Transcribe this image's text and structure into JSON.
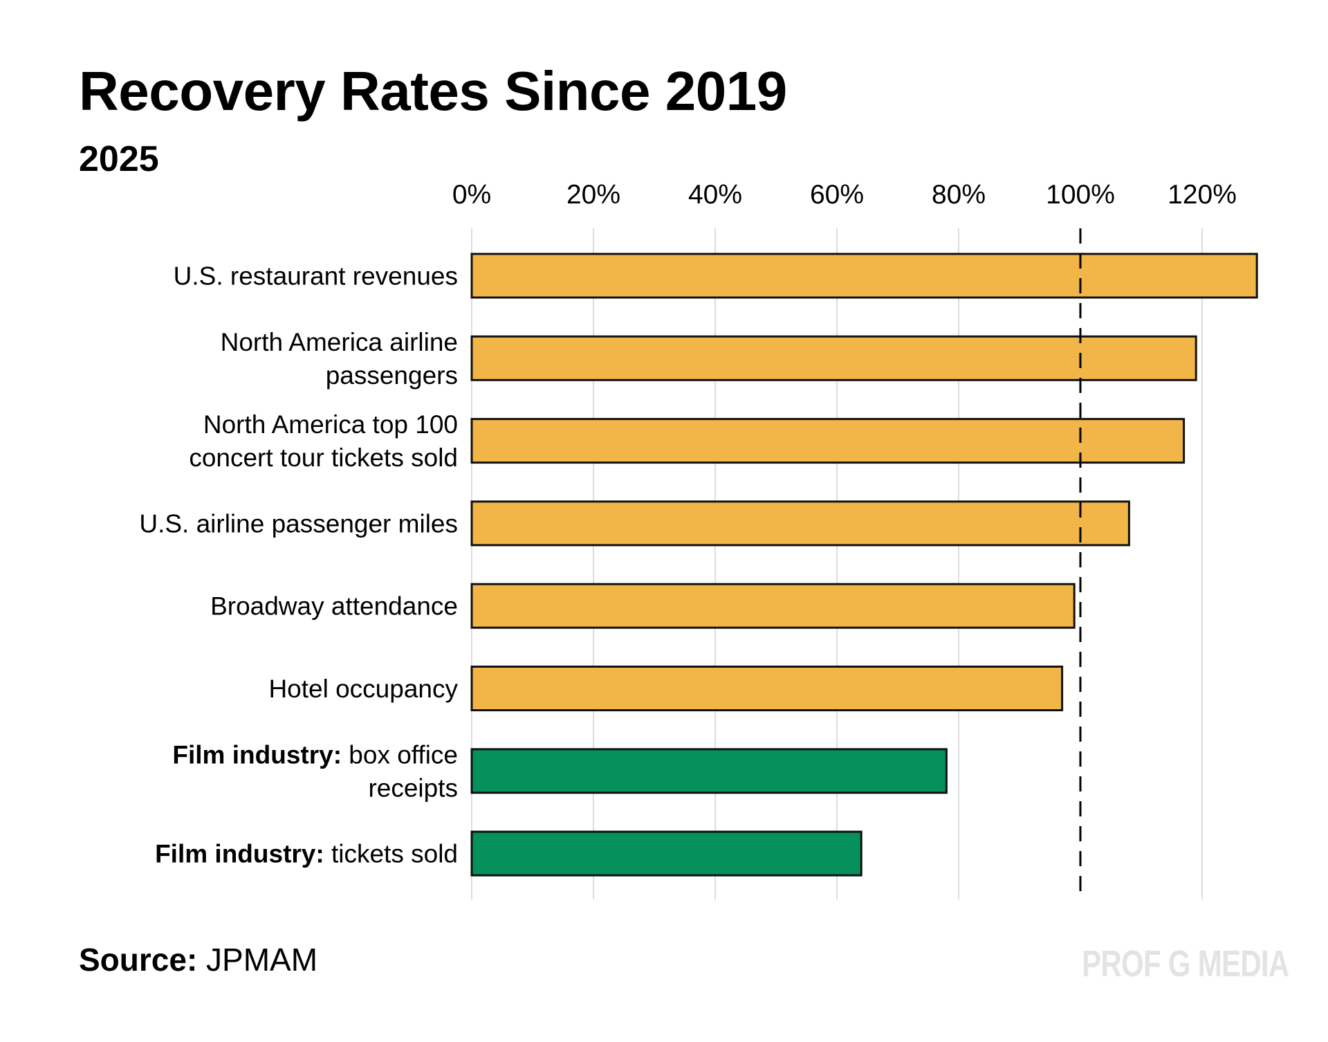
{
  "header": {
    "title": "Recovery Rates Since 2019",
    "subtitle": "2025"
  },
  "footer": {
    "source_label": "Source:",
    "source_value": "JPMAM",
    "watermark": "PROF G MEDIA"
  },
  "colors": {
    "bar_default": "#F2B547",
    "bar_highlight": "#05905C",
    "bar_outline": "#111111",
    "gridline": "#DCDCDC",
    "reference_line": "#000000"
  },
  "chart_data": {
    "type": "bar",
    "orientation": "horizontal",
    "title": "Recovery Rates Since 2019",
    "subtitle": "2025",
    "xlabel": "",
    "ylabel": "",
    "xlim": [
      0,
      130
    ],
    "x_ticks": [
      0,
      20,
      40,
      60,
      80,
      100,
      120
    ],
    "x_tick_labels": [
      "0%",
      "20%",
      "40%",
      "60%",
      "80%",
      "100%",
      "120%"
    ],
    "x_axis_position": "top",
    "grid": true,
    "reference_line": {
      "value": 100,
      "style": "dashed"
    },
    "categories": [
      {
        "bold_prefix": "",
        "lines": [
          "U.S. restaurant revenues"
        ]
      },
      {
        "bold_prefix": "",
        "lines": [
          "North America airline",
          "passengers"
        ]
      },
      {
        "bold_prefix": "",
        "lines": [
          "North America top 100",
          "concert tour tickets sold"
        ]
      },
      {
        "bold_prefix": "",
        "lines": [
          "U.S. airline passenger miles"
        ]
      },
      {
        "bold_prefix": "",
        "lines": [
          "Broadway attendance"
        ]
      },
      {
        "bold_prefix": "",
        "lines": [
          "Hotel occupancy"
        ]
      },
      {
        "bold_prefix": "Film industry:",
        "lines": [
          " box office",
          "receipts"
        ]
      },
      {
        "bold_prefix": "Film industry:",
        "lines": [
          " tickets sold"
        ]
      }
    ],
    "values": [
      129,
      119,
      117,
      108,
      99,
      97,
      78,
      64
    ],
    "highlight": [
      false,
      false,
      false,
      false,
      false,
      false,
      true,
      true
    ],
    "unit": "%",
    "legend": "none"
  }
}
